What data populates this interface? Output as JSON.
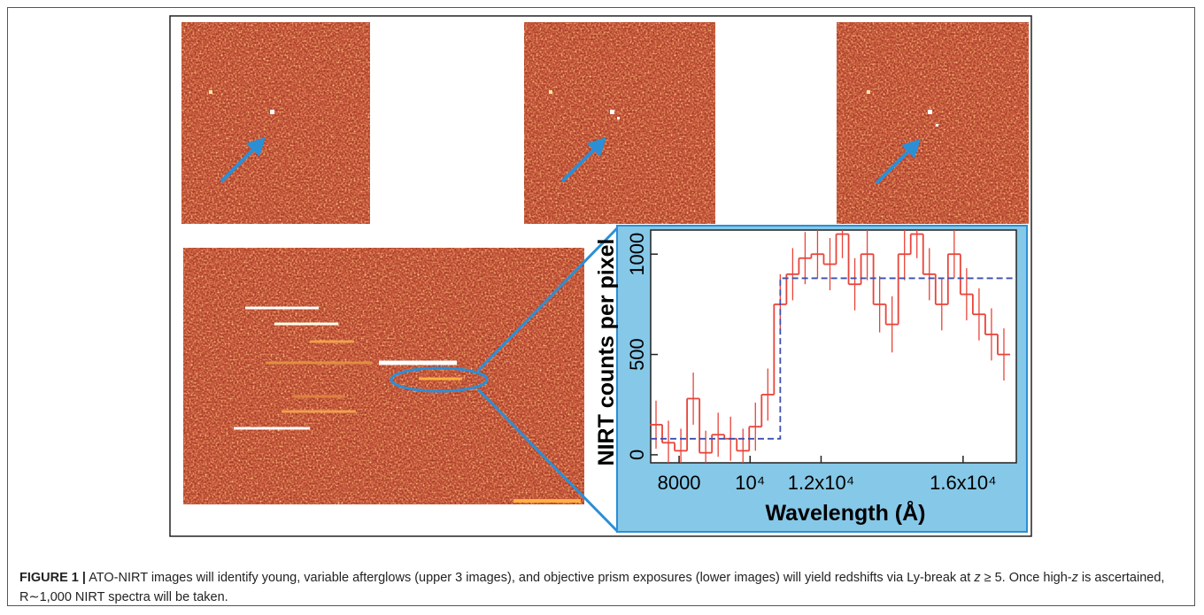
{
  "chart_data": {
    "type": "step",
    "ylabel": "NIRT counts per pixel",
    "xlabel": "Wavelength (Å)",
    "xlim": [
      7200,
      17500
    ],
    "ylim": [
      -40,
      1120
    ],
    "xticks": [
      8000,
      {
        "value": 10000,
        "label": "10⁴"
      },
      {
        "value": 12000,
        "label": "1.2x10⁴"
      },
      {
        "value": 16000,
        "label": "1.6x10⁴"
      }
    ],
    "yticks": [
      0,
      500,
      1000
    ],
    "x": [
      7350,
      7700,
      8050,
      8400,
      8750,
      9100,
      9450,
      9800,
      10150,
      10500,
      10850,
      11200,
      11550,
      11900,
      12250,
      12600,
      12950,
      13300,
      13650,
      14000,
      14350,
      14700,
      15050,
      15400,
      15750,
      16100,
      16450,
      16800,
      17150
    ],
    "values": [
      150,
      60,
      20,
      280,
      10,
      100,
      80,
      20,
      140,
      300,
      750,
      900,
      980,
      1000,
      950,
      1100,
      850,
      1000,
      750,
      650,
      1000,
      1100,
      900,
      750,
      1000,
      800,
      700,
      600,
      500
    ],
    "errors": [
      120,
      110,
      110,
      130,
      110,
      110,
      110,
      110,
      120,
      130,
      150,
      130,
      130,
      120,
      130,
      120,
      130,
      130,
      140,
      140,
      130,
      120,
      130,
      130,
      120,
      130,
      130,
      130,
      130
    ],
    "color": "#e8443a",
    "model": {
      "x": [
        7200,
        10850,
        10850,
        17500
      ],
      "values": [
        80,
        80,
        880,
        880
      ],
      "color": "#3a4fb0"
    }
  },
  "caption": {
    "label": "FIGURE 1 |",
    "parts": [
      {
        "text": " ATO-NIRT images will identify young, variable afterglows (upper 3 images), and objective prism exposures (lower images) will yield redshifts via Ly-break at "
      },
      {
        "text": "z",
        "style": "italic"
      },
      {
        "text": " ≥ 5. Once high-"
      },
      {
        "text": "z",
        "style": "italic"
      },
      {
        "text": " is ascertained, R∼1,000 NIRT spectra will be taken."
      }
    ]
  }
}
